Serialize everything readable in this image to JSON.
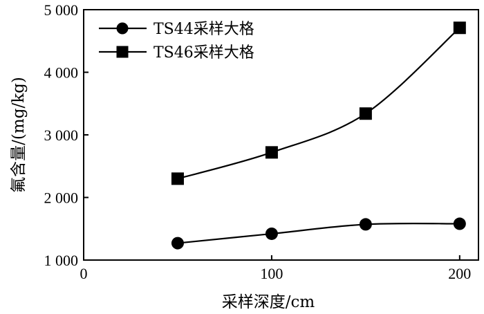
{
  "chart_data": {
    "type": "line",
    "xlabel": "采样深度/cm",
    "ylabel": "氟含量/(mg/kg)",
    "xlim": [
      0,
      210
    ],
    "ylim": [
      1000,
      5000
    ],
    "xticks": [
      0,
      100,
      200
    ],
    "xtick_labels": [
      "0",
      "100",
      "200"
    ],
    "yticks": [
      1000,
      2000,
      3000,
      4000,
      5000
    ],
    "ytick_labels": [
      "1 000",
      "2 000",
      "3 000",
      "4 000",
      "5 000"
    ],
    "legend_position": "top-left",
    "grid": false,
    "series": [
      {
        "name": "TS44采样大格",
        "marker": "circle",
        "color": "#000000",
        "x": [
          50,
          100,
          150,
          200
        ],
        "y": [
          1270,
          1420,
          1570,
          1580
        ]
      },
      {
        "name": "TS46采样大格",
        "marker": "square",
        "color": "#000000",
        "x": [
          50,
          100,
          150,
          200
        ],
        "y": [
          2300,
          2720,
          3340,
          4710
        ]
      }
    ]
  }
}
